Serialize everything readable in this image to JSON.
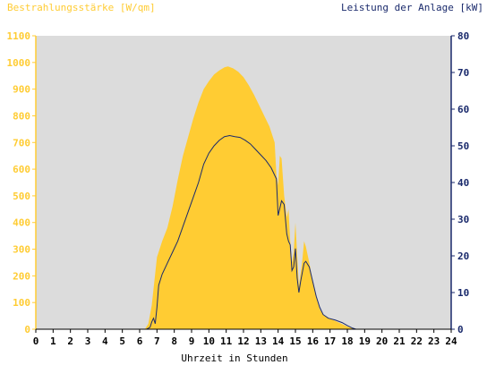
{
  "chart_data": {
    "type": "area",
    "left_axis_title": "Bestrahlungsstärke [W/qm]",
    "right_axis_title": "Leistung der Anlage [kW]",
    "xlabel": "Uhrzeit in Stunden",
    "xlim": [
      0,
      24
    ],
    "x_ticks": [
      "0",
      "1",
      "2",
      "3",
      "4",
      "5",
      "6",
      "7",
      "8",
      "9",
      "10",
      "11",
      "12",
      "13",
      "14",
      "15",
      "16",
      "17",
      "18",
      "19",
      "20",
      "21",
      "22",
      "23",
      "24"
    ],
    "left_ylim": [
      0,
      1100
    ],
    "left_ticks": [
      "0",
      "100",
      "200",
      "300",
      "400",
      "500",
      "600",
      "700",
      "800",
      "900",
      "1000",
      "1100"
    ],
    "right_ylim": [
      0,
      80
    ],
    "right_ticks": [
      "0",
      "10",
      "20",
      "30",
      "40",
      "50",
      "60",
      "70",
      "80"
    ],
    "grid": false,
    "colors": {
      "plot_bg": "#dcdcdc",
      "irradiance": "#ffcc33",
      "power": "#1a2a6c",
      "left_axis": "#ffcc33",
      "right_axis": "#1a2a6c"
    },
    "series": [
      {
        "kind": "area",
        "axis": "left",
        "points": [
          [
            0,
            0
          ],
          [
            6.3,
            0
          ],
          [
            6.5,
            20
          ],
          [
            6.7,
            90
          ],
          [
            7.0,
            270
          ],
          [
            7.3,
            330
          ],
          [
            7.6,
            380
          ],
          [
            7.9,
            460
          ],
          [
            8.2,
            560
          ],
          [
            8.5,
            650
          ],
          [
            8.8,
            720
          ],
          [
            9.1,
            790
          ],
          [
            9.4,
            850
          ],
          [
            9.7,
            900
          ],
          [
            10.0,
            930
          ],
          [
            10.3,
            955
          ],
          [
            10.6,
            970
          ],
          [
            10.9,
            982
          ],
          [
            11.1,
            985
          ],
          [
            11.4,
            978
          ],
          [
            11.7,
            965
          ],
          [
            12.0,
            945
          ],
          [
            12.3,
            915
          ],
          [
            12.6,
            880
          ],
          [
            12.9,
            840
          ],
          [
            13.2,
            800
          ],
          [
            13.5,
            760
          ],
          [
            13.8,
            700
          ],
          [
            13.9,
            580
          ],
          [
            14.0,
            540
          ],
          [
            14.1,
            650
          ],
          [
            14.2,
            640
          ],
          [
            14.35,
            500
          ],
          [
            14.5,
            420
          ],
          [
            14.6,
            450
          ],
          [
            14.7,
            330
          ],
          [
            14.8,
            250
          ],
          [
            14.9,
            290
          ],
          [
            15.0,
            400
          ],
          [
            15.1,
            280
          ],
          [
            15.2,
            160
          ],
          [
            15.4,
            260
          ],
          [
            15.5,
            330
          ],
          [
            15.6,
            310
          ],
          [
            15.8,
            250
          ],
          [
            16.0,
            180
          ],
          [
            16.2,
            120
          ],
          [
            16.4,
            75
          ],
          [
            16.6,
            55
          ],
          [
            17.0,
            40
          ],
          [
            17.5,
            25
          ],
          [
            18.0,
            10
          ],
          [
            18.4,
            2
          ],
          [
            18.6,
            0
          ],
          [
            24,
            0
          ]
        ]
      },
      {
        "kind": "line",
        "axis": "right",
        "points": [
          [
            0,
            0
          ],
          [
            6.4,
            0
          ],
          [
            6.6,
            0.5
          ],
          [
            6.7,
            2
          ],
          [
            6.8,
            3
          ],
          [
            6.9,
            1.5
          ],
          [
            7.0,
            6
          ],
          [
            7.1,
            12
          ],
          [
            7.3,
            15
          ],
          [
            7.6,
            18
          ],
          [
            7.9,
            21
          ],
          [
            8.2,
            24
          ],
          [
            8.5,
            28
          ],
          [
            8.8,
            32
          ],
          [
            9.1,
            36
          ],
          [
            9.4,
            40
          ],
          [
            9.7,
            45
          ],
          [
            10.0,
            48
          ],
          [
            10.3,
            50
          ],
          [
            10.6,
            51.5
          ],
          [
            10.9,
            52.5
          ],
          [
            11.2,
            52.8
          ],
          [
            11.5,
            52.5
          ],
          [
            11.8,
            52.3
          ],
          [
            12.1,
            51.5
          ],
          [
            12.4,
            50.5
          ],
          [
            12.7,
            49
          ],
          [
            13.0,
            47.5
          ],
          [
            13.3,
            46
          ],
          [
            13.6,
            44
          ],
          [
            13.9,
            41
          ],
          [
            14.0,
            31
          ],
          [
            14.1,
            33
          ],
          [
            14.2,
            35
          ],
          [
            14.35,
            34
          ],
          [
            14.5,
            26
          ],
          [
            14.6,
            24
          ],
          [
            14.7,
            23
          ],
          [
            14.8,
            16
          ],
          [
            14.9,
            17
          ],
          [
            15.0,
            22
          ],
          [
            15.1,
            14
          ],
          [
            15.2,
            10
          ],
          [
            15.3,
            13
          ],
          [
            15.5,
            18
          ],
          [
            15.6,
            18.5
          ],
          [
            15.8,
            17
          ],
          [
            16.0,
            13
          ],
          [
            16.2,
            9
          ],
          [
            16.4,
            6
          ],
          [
            16.6,
            4
          ],
          [
            16.9,
            3
          ],
          [
            17.3,
            2.5
          ],
          [
            17.7,
            1.8
          ],
          [
            18.0,
            1
          ],
          [
            18.3,
            0.3
          ],
          [
            18.5,
            0
          ],
          [
            24,
            0
          ]
        ]
      }
    ]
  }
}
